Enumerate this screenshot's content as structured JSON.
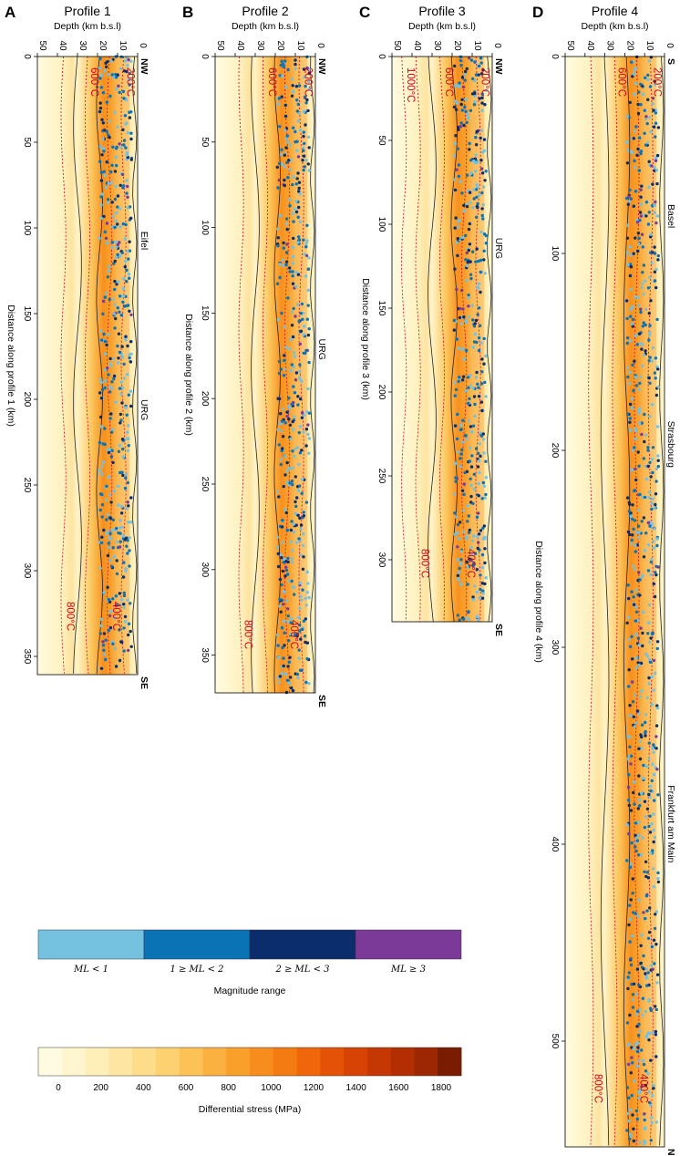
{
  "colors": {
    "stress_scale": [
      "#fffbe2",
      "#fff6d0",
      "#feefb9",
      "#fee6a2",
      "#fddc8a",
      "#fdd070",
      "#fcc256",
      "#fbb13f",
      "#f9a02b",
      "#f78d1c",
      "#f47a12",
      "#ef660b",
      "#e45207",
      "#d64305",
      "#c63803",
      "#b32f03",
      "#9c2702",
      "#7a1c01"
    ],
    "isotherm": "#d1001c",
    "magnitude": [
      "#74c2e0",
      "#0a73b6",
      "#0b2d6b",
      "#7b3a98"
    ]
  },
  "panels": [
    {
      "letter": "A",
      "title": "Profile 1",
      "xlabel": "Depth (km b.s.l)",
      "ylabel": "Distance along profile 1 (km)",
      "length": 360,
      "dist_ticks": [
        "0",
        "50",
        "100",
        "150",
        "200",
        "250",
        "300",
        "350"
      ],
      "depth_ticks": [
        "50",
        "40",
        "30",
        "20",
        "10",
        "0"
      ],
      "start": "NW",
      "end": "SE",
      "places": [
        {
          "label": "Eifel",
          "d": 102
        },
        {
          "label": "URG",
          "d": 200
        }
      ],
      "iso_top": [
        "200°C",
        "600°C"
      ],
      "iso_bottom": [
        "400°C",
        "800°C"
      ]
    },
    {
      "letter": "B",
      "title": "Profile 2",
      "xlabel": "Depth (km b.s.l)",
      "ylabel": "Distance along profile 2 (km)",
      "length": 372,
      "dist_ticks": [
        "0",
        "50",
        "100",
        "150",
        "200",
        "250",
        "300",
        "350"
      ],
      "depth_ticks": [
        "50",
        "40",
        "30",
        "20",
        "10",
        "0"
      ],
      "start": "NW",
      "end": "SE",
      "places": [
        {
          "label": "URG",
          "d": 165
        }
      ],
      "iso_top": [
        "200°C",
        "600°C"
      ],
      "iso_bottom": [
        "400°C",
        "800°C"
      ]
    },
    {
      "letter": "C",
      "title": "Profile 3",
      "xlabel": "Depth (km b.s.l)",
      "ylabel": "Distance along profile 3 (km)",
      "length": 337,
      "dist_ticks": [
        "0",
        "50",
        "100",
        "150",
        "200",
        "250",
        "300"
      ],
      "depth_ticks": [
        "50",
        "40",
        "30",
        "20",
        "10",
        "0"
      ],
      "start": "NW",
      "end": "SE",
      "places": [
        {
          "label": "URG",
          "d": 108
        }
      ],
      "iso_top": [
        "200°C",
        "600°C",
        "1000°C"
      ],
      "iso_bottom": [
        "400°C",
        "800°C"
      ]
    },
    {
      "letter": "D",
      "title": "Profile 4",
      "xlabel": "Depth (km b.s.l)",
      "ylabel": "Distance along profile 4 (km)",
      "length": 553,
      "dist_ticks": [
        "0",
        "100",
        "200",
        "300",
        "400",
        "500"
      ],
      "depth_ticks": [
        "50",
        "40",
        "30",
        "20",
        "10",
        "0"
      ],
      "start": "S",
      "end": "N",
      "places": [
        {
          "label": "Basel",
          "d": 75
        },
        {
          "label": "Strasbourg",
          "d": 185
        },
        {
          "label": "Frankfurt am Main",
          "d": 370
        }
      ],
      "iso_top": [
        "200°C",
        "600°C"
      ],
      "iso_bottom": [
        "400°C",
        "800°C"
      ]
    }
  ],
  "magnitude_legend": {
    "title": "Magnitude range",
    "labels": [
      "M_L < 1",
      "1 ≥ M_L < 2",
      "2 ≥ M_L < 3",
      "M_L ≥ 3"
    ]
  },
  "stress_legend": {
    "title": "Differential stress (MPa)",
    "ticks": [
      "0",
      "200",
      "400",
      "600",
      "800",
      "1000",
      "1200",
      "1400",
      "1600",
      "1800"
    ]
  },
  "chart_data": {
    "type": "heatmap",
    "x_quantity": "Depth (km b.s.l)",
    "xlim": [
      50,
      0
    ],
    "colorbar_range": [
      0,
      1800
    ],
    "series": [
      {
        "panel": "A",
        "ylim": [
          0,
          360
        ]
      },
      {
        "panel": "B",
        "ylim": [
          0,
          372
        ]
      },
      {
        "panel": "C",
        "ylim": [
          0,
          337
        ]
      },
      {
        "panel": "D",
        "ylim": [
          0,
          553
        ]
      }
    ]
  }
}
